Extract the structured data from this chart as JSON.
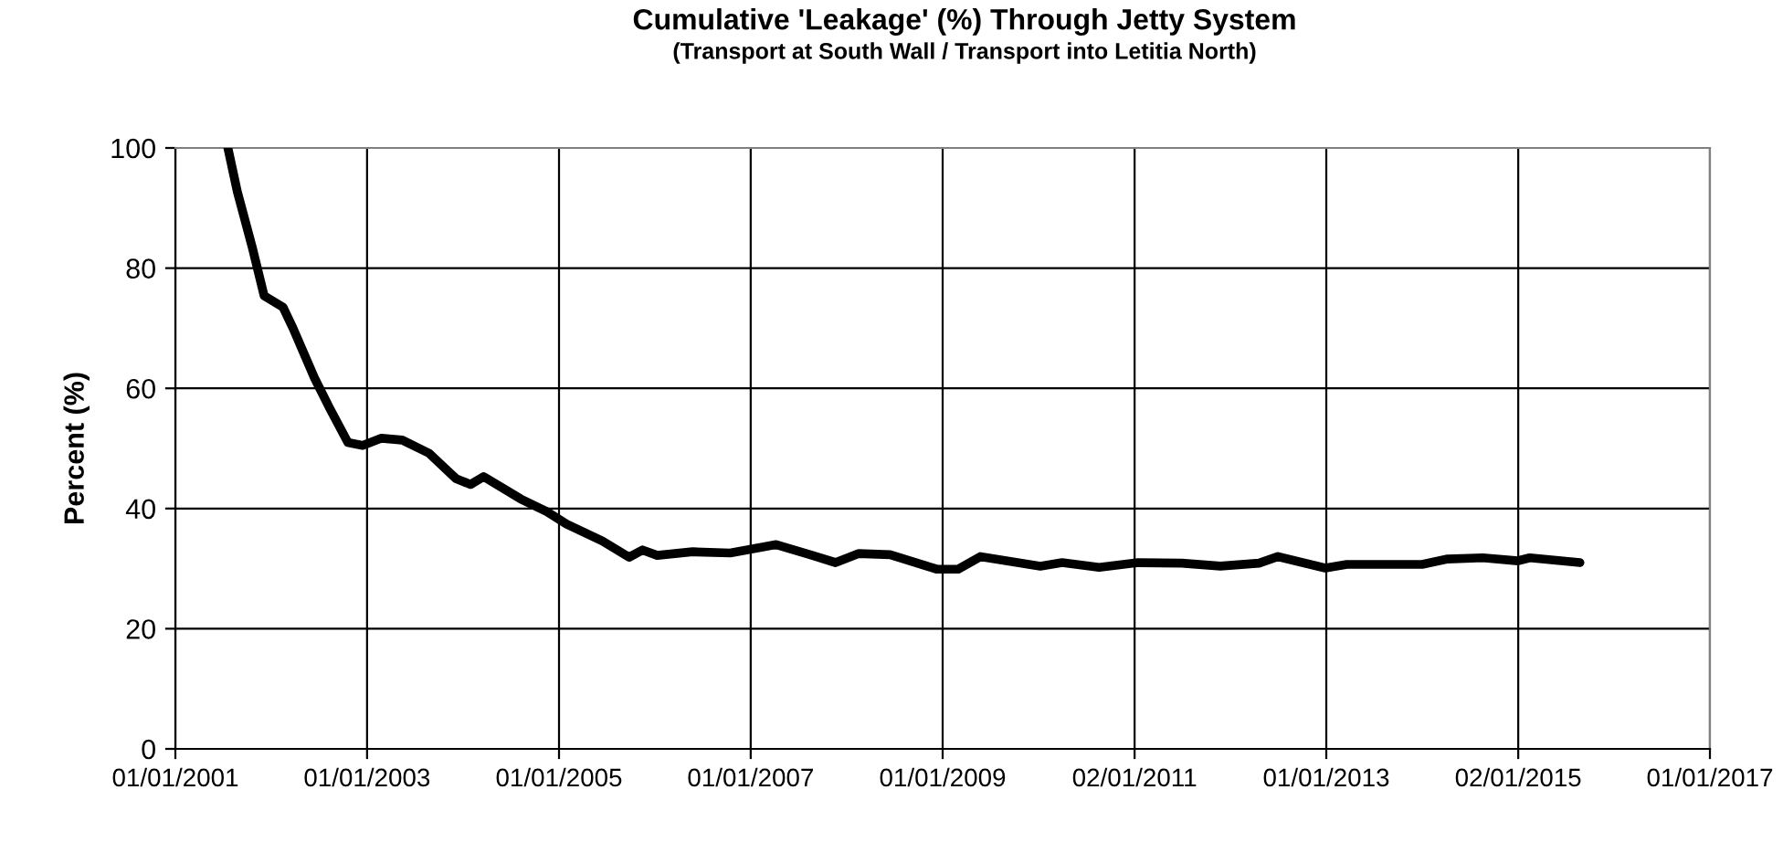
{
  "chart_data": {
    "type": "line",
    "title": "Cumulative 'Leakage' (%) Through Jetty System",
    "subtitle": "(Transport at South Wall / Transport into Letitia North)",
    "ylabel": "Percent (%)",
    "x": [
      "2001-07-20",
      "2001-08-25",
      "2001-10-20",
      "2001-12-05",
      "2002-02-15",
      "2002-03-25",
      "2002-06-15",
      "2002-08-08",
      "2002-10-20",
      "2002-12-15",
      "2003-02-25",
      "2003-05-15",
      "2003-08-25",
      "2003-12-05",
      "2004-01-30",
      "2004-03-20",
      "2004-08-08",
      "2004-11-15",
      "2005-01-30",
      "2005-06-15",
      "2005-09-25",
      "2005-11-15",
      "2006-01-10",
      "2006-05-25",
      "2006-10-15",
      "2007-04-08",
      "2007-08-15",
      "2007-11-20",
      "2008-02-15",
      "2008-06-15",
      "2008-12-10",
      "2009-03-01",
      "2009-05-25",
      "2010-01-08",
      "2010-04-01",
      "2010-08-20",
      "2011-01-15",
      "2011-07-01",
      "2011-11-25",
      "2012-04-20",
      "2012-07-01",
      "2012-12-28",
      "2013-03-20",
      "2014-01-01",
      "2014-04-08",
      "2014-08-20",
      "2015-01-01",
      "2015-02-15",
      "2015-08-25"
    ],
    "series": [
      {
        "color": "#000000",
        "values": [
          100,
          92.7,
          83.6,
          75.4,
          73.5,
          70,
          61.7,
          57,
          51,
          50.5,
          51.7,
          51.4,
          49.2,
          45,
          44,
          45.3,
          41.6,
          39.5,
          37.4,
          34.6,
          31.9,
          33.1,
          32.2,
          32.8,
          32.6,
          34,
          32.3,
          31,
          32.5,
          32.3,
          29.9,
          29.9,
          32,
          30.4,
          31,
          30.2,
          31,
          30.9,
          30.4,
          30.9,
          32,
          30.1,
          30.7,
          30.7,
          31.6,
          31.8,
          31.3,
          31.8,
          31
        ]
      }
    ],
    "xlim": [
      "2001-01-01",
      "2017-01-01"
    ],
    "xticks": [
      {
        "value": "2001-01-01",
        "label": "01/01/2001"
      },
      {
        "value": "2003-01-01",
        "label": "01/01/2003"
      },
      {
        "value": "2005-01-01",
        "label": "01/01/2005"
      },
      {
        "value": "2007-01-01",
        "label": "01/01/2007"
      },
      {
        "value": "2009-01-01",
        "label": "01/01/2009"
      },
      {
        "value": "2011-01-02",
        "label": "02/01/2011"
      },
      {
        "value": "2013-01-01",
        "label": "01/01/2013"
      },
      {
        "value": "2015-01-02",
        "label": "02/01/2015"
      },
      {
        "value": "2017-01-01",
        "label": "01/01/2017"
      }
    ],
    "ylim": [
      0,
      100
    ],
    "yticks": [
      0,
      20,
      40,
      60,
      80,
      100
    ],
    "grid": true,
    "marker": "none",
    "line_style": "solid"
  }
}
